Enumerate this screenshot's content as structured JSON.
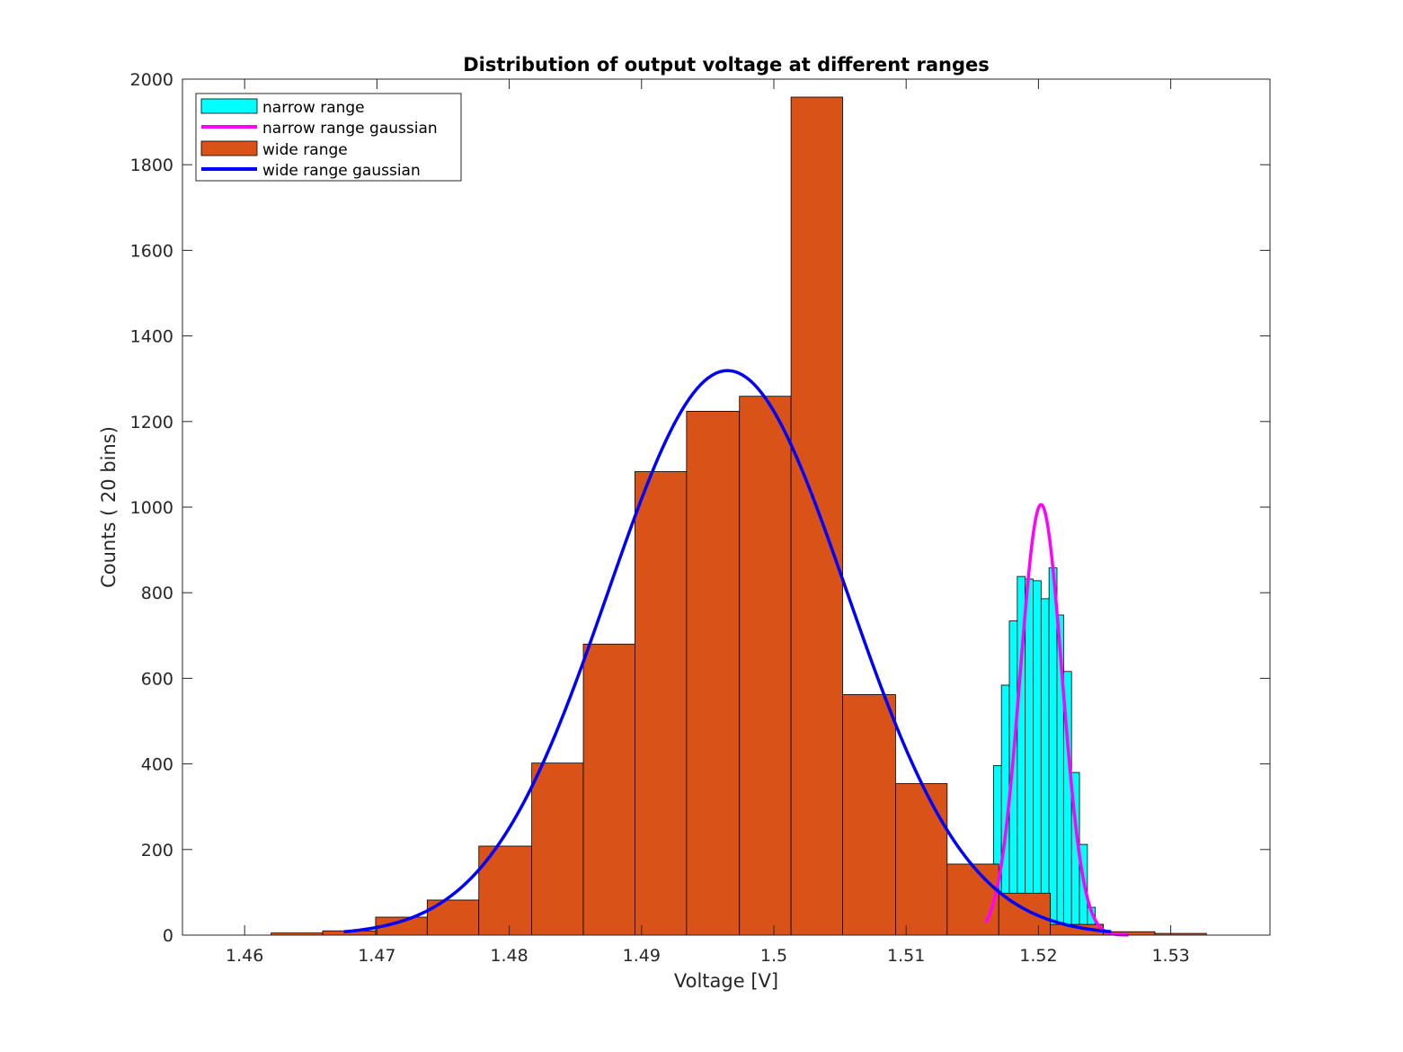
{
  "chart_data": {
    "type": "bar",
    "title": "Distribution of output voltage at different ranges",
    "xlabel": "Voltage [V]",
    "ylabel": "Counts ( 20 bins)",
    "xlim": [
      1.4553,
      1.5375
    ],
    "ylim": [
      0,
      2000
    ],
    "xticks": [
      1.46,
      1.47,
      1.48,
      1.49,
      1.5,
      1.51,
      1.52,
      1.53
    ],
    "xtick_labels": [
      "1.46",
      "1.47",
      "1.48",
      "1.49",
      "1.5",
      "1.51",
      "1.52",
      "1.53"
    ],
    "yticks": [
      0,
      200,
      400,
      600,
      800,
      1000,
      1200,
      1400,
      1600,
      1800,
      2000
    ],
    "ytick_labels": [
      "0",
      "200",
      "400",
      "600",
      "800",
      "1000",
      "1200",
      "1400",
      "1600",
      "1800",
      "2000"
    ],
    "grid": false,
    "legend_position": "top-left",
    "series": [
      {
        "name": "wide range",
        "kind": "histogram",
        "color": "#D95319",
        "edges": [
          1.462,
          1.4659,
          1.4699,
          1.4738,
          1.4777,
          1.4817,
          1.4856,
          1.4895,
          1.4934,
          1.4974,
          1.5013,
          1.5052,
          1.5092,
          1.5131,
          1.517,
          1.5209,
          1.5249,
          1.5288,
          1.5327
        ],
        "counts": [
          5,
          10,
          42,
          82,
          208,
          402,
          680,
          1083,
          1224,
          1259,
          1958,
          562,
          354,
          166,
          98,
          25,
          8,
          4
        ]
      },
      {
        "name": "narrow range",
        "kind": "histogram",
        "color": "#00FFFF",
        "edges": [
          1.5166,
          1.5172,
          1.5178,
          1.5184,
          1.519,
          1.5196,
          1.5202,
          1.5208,
          1.5214,
          1.5219,
          1.5225,
          1.5231,
          1.5237,
          1.5243,
          1.5249,
          1.5255
        ],
        "counts": [
          396,
          584,
          734,
          838,
          832,
          828,
          786,
          858,
          748,
          616,
          380,
          212,
          65,
          25,
          3
        ]
      },
      {
        "name": "narrow range gaussian",
        "kind": "curve",
        "color": "#FF00FF",
        "x_range": [
          1.516,
          1.5268
        ],
        "mean": 1.5202,
        "sigma": 0.00158,
        "peak": 1006
      },
      {
        "name": "wide range gaussian",
        "kind": "curve",
        "color": "#0000FF",
        "x_range": [
          1.4675,
          1.5255
        ],
        "mean": 1.4965,
        "sigma": 0.00905,
        "peak": 1319
      }
    ]
  }
}
